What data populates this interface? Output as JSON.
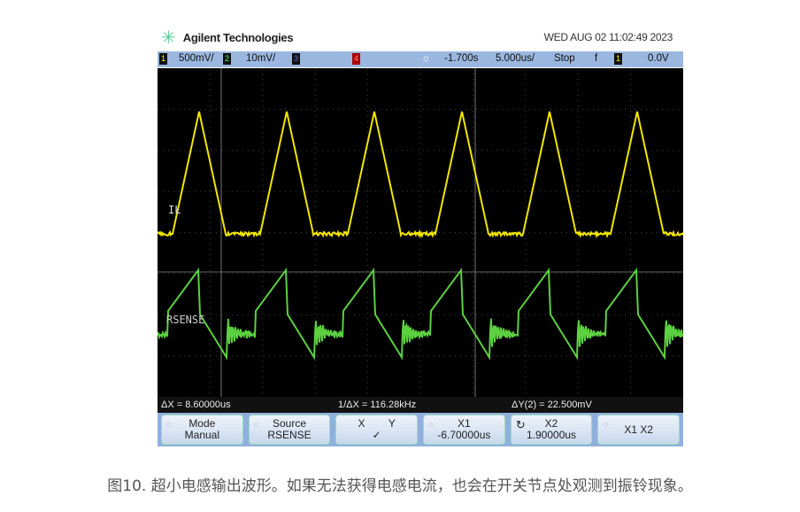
{
  "header": {
    "brand": "Agilent Technologies",
    "datetime": "WED AUG 02 11:02:49 2023"
  },
  "topbar": {
    "ch1_num": "1",
    "ch1_scale": "500mV/",
    "ch2_num": "2",
    "ch2_scale": "10mV/",
    "ch3_num": "3",
    "ch4_num": "4",
    "delay": "-1.700s",
    "timebase": "5.000us/",
    "run_state": "Stop",
    "trigger_slope": "f",
    "trigger_ch": "1",
    "trigger_level": "0.0V"
  },
  "traces": {
    "ch1_label": "IL",
    "ch2_label": "RSENSE",
    "ch1_color": "#f2e600",
    "ch2_color": "#5cd040"
  },
  "measurements": {
    "delta_x": "ΔX = 8.60000us",
    "inv_delta_x": "1/ΔX = 116.28kHz",
    "delta_y": "ΔY(2) = 22.500mV"
  },
  "softkeys": [
    {
      "top": "Mode",
      "bottom": "Manual"
    },
    {
      "top": "Source",
      "bottom": "RSENSE"
    },
    {
      "top": "X        Y",
      "bottom": "✓"
    },
    {
      "top": "X1",
      "bottom": "-6.70000us"
    },
    {
      "top": "X2",
      "bottom": "1.90000us"
    },
    {
      "top": "X1 X2",
      "bottom": ""
    }
  ],
  "caption": "图10. 超小电感输出波形。如果无法获得电感电流，也会在开关节点处观测到振铃现象。"
}
